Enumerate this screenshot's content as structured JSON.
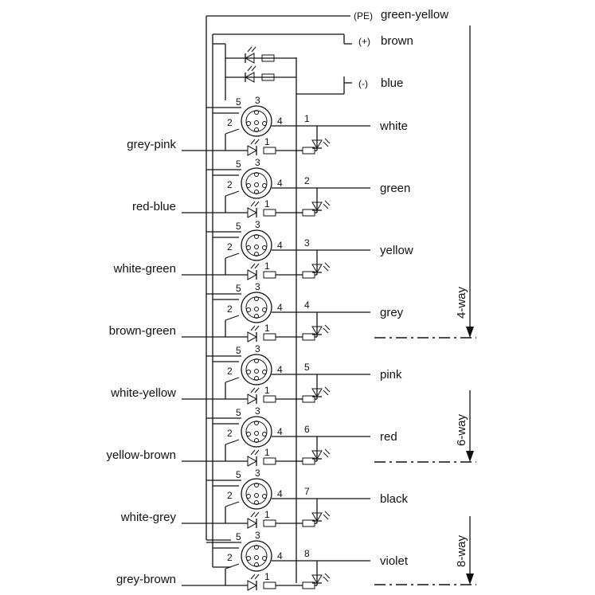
{
  "top_wires": [
    {
      "symbol": "(PE)",
      "color": "green-yellow"
    },
    {
      "symbol": "(+)",
      "color": "brown"
    },
    {
      "symbol": "(-)",
      "color": "blue"
    }
  ],
  "channels": [
    {
      "num": "1",
      "right": "white",
      "left": "grey-pink"
    },
    {
      "num": "2",
      "right": "green",
      "left": "red-blue"
    },
    {
      "num": "3",
      "right": "yellow",
      "left": "white-green"
    },
    {
      "num": "4",
      "right": "grey",
      "left": "brown-green"
    },
    {
      "num": "5",
      "right": "pink",
      "left": "white-yellow"
    },
    {
      "num": "6",
      "right": "red",
      "left": "yellow-brown"
    },
    {
      "num": "7",
      "right": "black",
      "left": "white-grey"
    },
    {
      "num": "8",
      "right": "violet",
      "left": "grey-brown"
    }
  ],
  "connector_pins": [
    "1",
    "2",
    "3",
    "4",
    "5"
  ],
  "variants": [
    "4-way",
    "6-way",
    "8-way"
  ]
}
